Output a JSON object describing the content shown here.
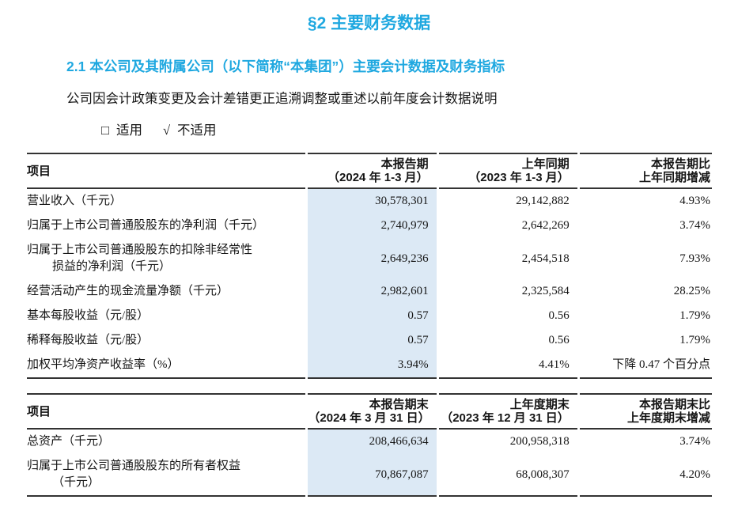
{
  "colors": {
    "accent": "#1fa8e0",
    "highlight": "#dce9f5",
    "border": "#333333"
  },
  "doc": {
    "section_title": "§2 主要财务数据",
    "subsection_title": "2.1  本公司及其附属公司（以下简称“本集团”）主要会计数据及财务指标",
    "statement": "公司因会计政策变更及会计差错更正追溯调整或重述以前年度会计数据说明",
    "applicable_box": "□",
    "applicable_label": "适用",
    "not_applicable_check": "√",
    "not_applicable_label": "不适用"
  },
  "table1": {
    "headers": {
      "item": "项目",
      "current_line1": "本报告期",
      "current_line2": "（2024 年 1-3 月）",
      "prior_line1": "上年同期",
      "prior_line2": "（2023 年 1-3 月）",
      "change_line1": "本报告期比",
      "change_line2": "上年同期增减"
    },
    "rows": [
      {
        "label": "营业收入（千元）",
        "current": "30,578,301",
        "prior": "29,142,882",
        "change": "4.93%"
      },
      {
        "label": "归属于上市公司普通股股东的净利润（千元）",
        "current": "2,740,979",
        "prior": "2,642,269",
        "change": "3.74%"
      },
      {
        "label": "归属于上市公司普通股股东的扣除非经常性",
        "label2": "损益的净利润（千元）",
        "current": "2,649,236",
        "prior": "2,454,518",
        "change": "7.93%"
      },
      {
        "label": "经营活动产生的现金流量净额（千元）",
        "current": "2,982,601",
        "prior": "2,325,584",
        "change": "28.25%"
      },
      {
        "label": "基本每股收益（元/股）",
        "current": "0.57",
        "prior": "0.56",
        "change": "1.79%"
      },
      {
        "label": "稀释每股收益（元/股）",
        "current": "0.57",
        "prior": "0.56",
        "change": "1.79%"
      },
      {
        "label": "加权平均净资产收益率（%）",
        "current": "3.94%",
        "prior": "4.41%",
        "change": "下降 0.47 个百分点"
      }
    ]
  },
  "table2": {
    "headers": {
      "item": "项目",
      "current_line1": "本报告期末",
      "current_line2": "（2024 年 3 月 31 日）",
      "prior_line1": "上年度期末",
      "prior_line2": "（2023 年 12 月 31 日）",
      "change_line1": "本报告期末比",
      "change_line2": "上年度期末增减"
    },
    "rows": [
      {
        "label": "总资产（千元）",
        "current": "208,466,634",
        "prior": "200,958,318",
        "change": "3.74%"
      },
      {
        "label": "归属于上市公司普通股股东的所有者权益",
        "label2": "（千元）",
        "current": "70,867,087",
        "prior": "68,008,307",
        "change": "4.20%"
      }
    ]
  }
}
